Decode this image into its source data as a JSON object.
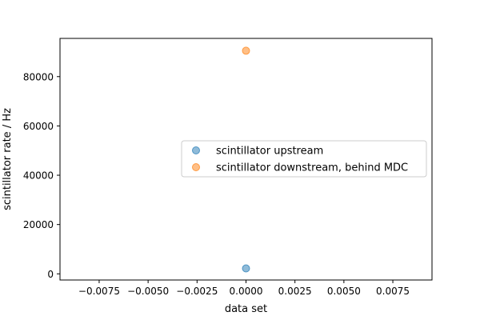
{
  "chart_data": {
    "type": "scatter",
    "title": "",
    "xlabel": "data set",
    "ylabel": "scintillator rate / Hz",
    "xlim": [
      -0.0095,
      0.0095
    ],
    "ylim": [
      -2500,
      95500
    ],
    "xticks": [
      -0.0075,
      -0.005,
      -0.0025,
      0.0,
      0.0025,
      0.005,
      0.0075
    ],
    "xtick_labels": [
      "−0.0075",
      "−0.0050",
      "−0.0025",
      "0.0000",
      "0.0025",
      "0.0050",
      "0.0075"
    ],
    "yticks": [
      0,
      20000,
      40000,
      60000,
      80000
    ],
    "ytick_labels": [
      "0",
      "20000",
      "40000",
      "60000",
      "80000"
    ],
    "grid": false,
    "legend_position": "center-right",
    "series": [
      {
        "name": "scintillator upstream",
        "color": "#1f77b4",
        "points": [
          {
            "x": 0.0,
            "y": 2200
          }
        ]
      },
      {
        "name": "scintillator downstream, behind MDC",
        "color": "#ff7f0e",
        "points": [
          {
            "x": 0.0,
            "y": 90500
          }
        ]
      }
    ]
  }
}
